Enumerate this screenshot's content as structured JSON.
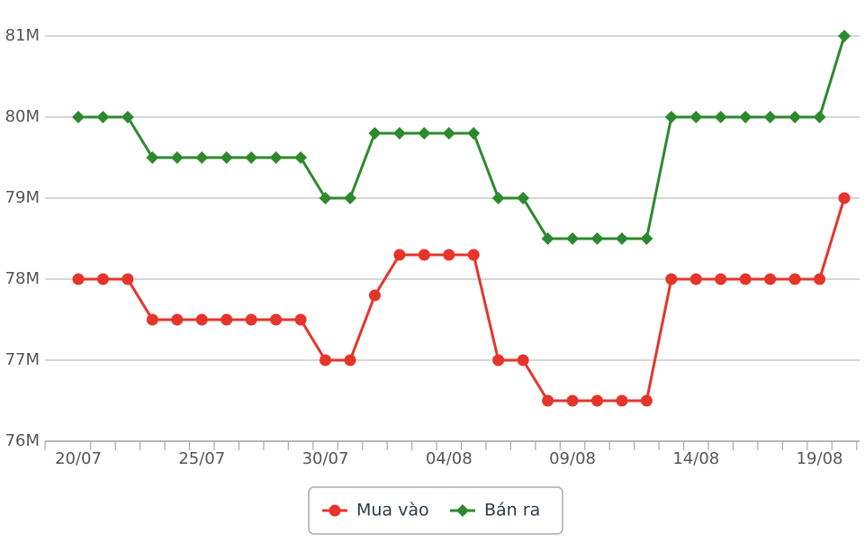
{
  "chart_data": {
    "type": "line",
    "categories": [
      "20/07",
      null,
      null,
      null,
      null,
      "25/07",
      null,
      null,
      null,
      null,
      "30/07",
      null,
      null,
      null,
      null,
      "04/08",
      null,
      null,
      null,
      null,
      "09/08",
      null,
      null,
      null,
      null,
      "14/08",
      null,
      null,
      null,
      null,
      "19/08",
      null
    ],
    "series": [
      {
        "name": "Mua vào",
        "color": "#e5352b",
        "marker": "circle",
        "values": [
          78,
          78,
          78,
          77.5,
          77.5,
          77.5,
          77.5,
          77.5,
          77.5,
          77.5,
          77,
          77,
          77.8,
          78.3,
          78.3,
          78.3,
          78.3,
          77,
          77,
          76.5,
          76.5,
          76.5,
          76.5,
          76.5,
          78,
          78,
          78,
          78,
          78,
          78,
          78,
          79
        ]
      },
      {
        "name": "Bán ra",
        "color": "#2c8a2c",
        "marker": "diamond",
        "values": [
          80,
          80,
          80,
          79.5,
          79.5,
          79.5,
          79.5,
          79.5,
          79.5,
          79.5,
          79,
          79,
          79.8,
          79.8,
          79.8,
          79.8,
          79.8,
          79,
          79,
          78.5,
          78.5,
          78.5,
          78.5,
          78.5,
          80,
          80,
          80,
          80,
          80,
          80,
          80,
          81
        ]
      }
    ],
    "ylim": [
      76,
      81
    ],
    "yticks": [
      {
        "value": 76,
        "label": "76M"
      },
      {
        "value": 77,
        "label": "77M"
      },
      {
        "value": 78,
        "label": "78M"
      },
      {
        "value": 79,
        "label": "79M"
      },
      {
        "value": 80,
        "label": "80M"
      },
      {
        "value": 81,
        "label": "81M"
      }
    ],
    "grid": true,
    "legend": "bottom"
  }
}
